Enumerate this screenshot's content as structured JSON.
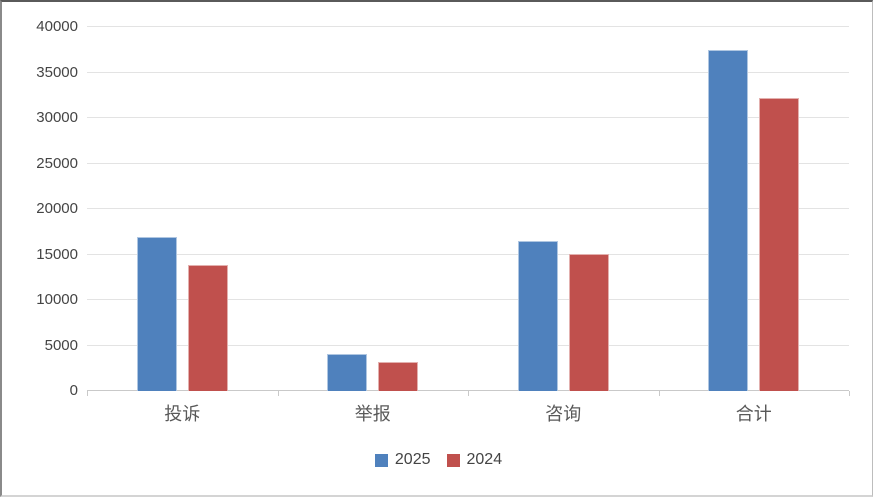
{
  "chart_data": {
    "type": "bar",
    "title": "",
    "xlabel": "",
    "ylabel": "",
    "categories": [
      "投诉",
      "举报",
      "咨询",
      "合计"
    ],
    "series": [
      {
        "name": "2025",
        "color": "#4F81BD",
        "values": [
          16900,
          4100,
          16500,
          37500
        ]
      },
      {
        "name": "2024",
        "color": "#C0504D",
        "values": [
          13900,
          3200,
          15100,
          32200
        ]
      }
    ],
    "ylim": [
      0,
      40000
    ],
    "ytick_interval": 5000,
    "yticks": [
      0,
      5000,
      10000,
      15000,
      20000,
      25000,
      30000,
      35000,
      40000
    ],
    "grid": true,
    "legend_position": "bottom"
  },
  "colors": {
    "background": "#FFFFFF",
    "gridline": "#E3E3E3",
    "axis_line": "#C9C9C9",
    "tick_label_text": "#444444",
    "category_label_text": "#595959",
    "series_2025": "#4F81BD",
    "series_2024": "#C0504D"
  }
}
